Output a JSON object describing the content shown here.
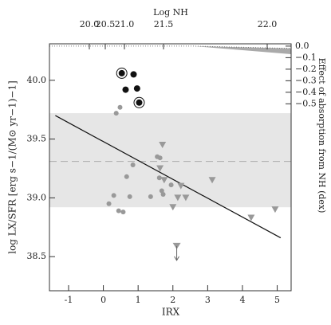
{
  "chart_data": {
    "type": "scatter",
    "xlabel": "IRX",
    "ylabel": "log LX/SFR [erg s−1/(M⊙ yr−1)−1]",
    "x2label": "Log NH",
    "y2label": "Effect of absorption from NH (dex)",
    "xlim": [
      -1.55,
      5.4
    ],
    "xticks": [
      -1,
      0,
      1,
      2,
      3,
      4,
      5
    ],
    "ylim": [
      38.21,
      40.31
    ],
    "yticks": [
      {
        "value": 40.0,
        "label": "40.0"
      },
      39.5,
      {
        "value": 39.0,
        "label": "39.0"
      },
      38.5
    ],
    "x2ticks": [
      {
        "value": 20.0,
        "label": "20.0"
      },
      20.5,
      {
        "value": 21.0,
        "label": "21.0"
      },
      21.5,
      {
        "value": 22.0,
        "label": "22.0"
      }
    ],
    "y2lim": [
      -2.12,
      0.02
    ],
    "y2ticks": [
      {
        "value": 0.0,
        "label": "0.0"
      },
      {
        "value": -0.1,
        "label": "−0.1"
      },
      {
        "value": -0.2,
        "label": "−0.2"
      },
      {
        "value": -0.3,
        "label": "−0.3"
      },
      {
        "value": -0.4,
        "label": "−0.4"
      },
      {
        "value": -0.5,
        "label": "−0.5"
      }
    ],
    "band": {
      "color": "#e6e6e6",
      "values": [
        38.92,
        39.72
      ]
    },
    "mean_line": {
      "color": "#aaaaaa",
      "value": 39.31
    },
    "fit": {
      "color": "#111111",
      "x": [
        -1.38,
        5.1
      ],
      "values": [
        39.7,
        38.66
      ]
    },
    "absorption": {
      "color": "#aaaaaa",
      "x": [
        -1.55,
        2.6,
        5.4
      ],
      "upper": [
        0,
        0,
        -0.02
      ],
      "lower": [
        0,
        0,
        -0.07
      ]
    },
    "series": [
      {
        "marker": "circle",
        "ringed": true,
        "color": "#111111",
        "x": [
          0.53,
          1.03
        ],
        "values": [
          40.06,
          39.81
        ]
      },
      {
        "marker": "circle",
        "color": "#111111",
        "x": [
          0.87,
          0.64,
          0.97
        ],
        "values": [
          40.05,
          39.92,
          39.93
        ]
      },
      {
        "marker": "circle",
        "color": "#999999",
        "x": [
          0.37,
          0.48,
          0.16,
          0.3,
          0.44,
          0.57,
          0.76,
          0.67,
          0.85,
          1.36,
          1.61,
          1.63,
          1.68,
          1.72,
          1.95,
          1.55
        ],
        "values": [
          39.72,
          39.77,
          38.95,
          39.02,
          38.89,
          38.88,
          39.01,
          39.18,
          39.28,
          39.01,
          39.17,
          39.34,
          39.06,
          39.03,
          39.11,
          39.35
        ]
      },
      {
        "marker": "triangle",
        "color": "#999999",
        "x": [
          1.7,
          1.63,
          1.75,
          2.0,
          2.14,
          2.23,
          2.37,
          3.13,
          4.25,
          4.94
        ],
        "values": [
          39.45,
          39.25,
          39.15,
          38.92,
          39.0,
          39.1,
          39.0,
          39.15,
          38.83,
          38.9
        ]
      },
      {
        "marker": "limit",
        "color": "#999999",
        "x": [
          2.11
        ],
        "values": [
          38.59
        ]
      }
    ]
  }
}
